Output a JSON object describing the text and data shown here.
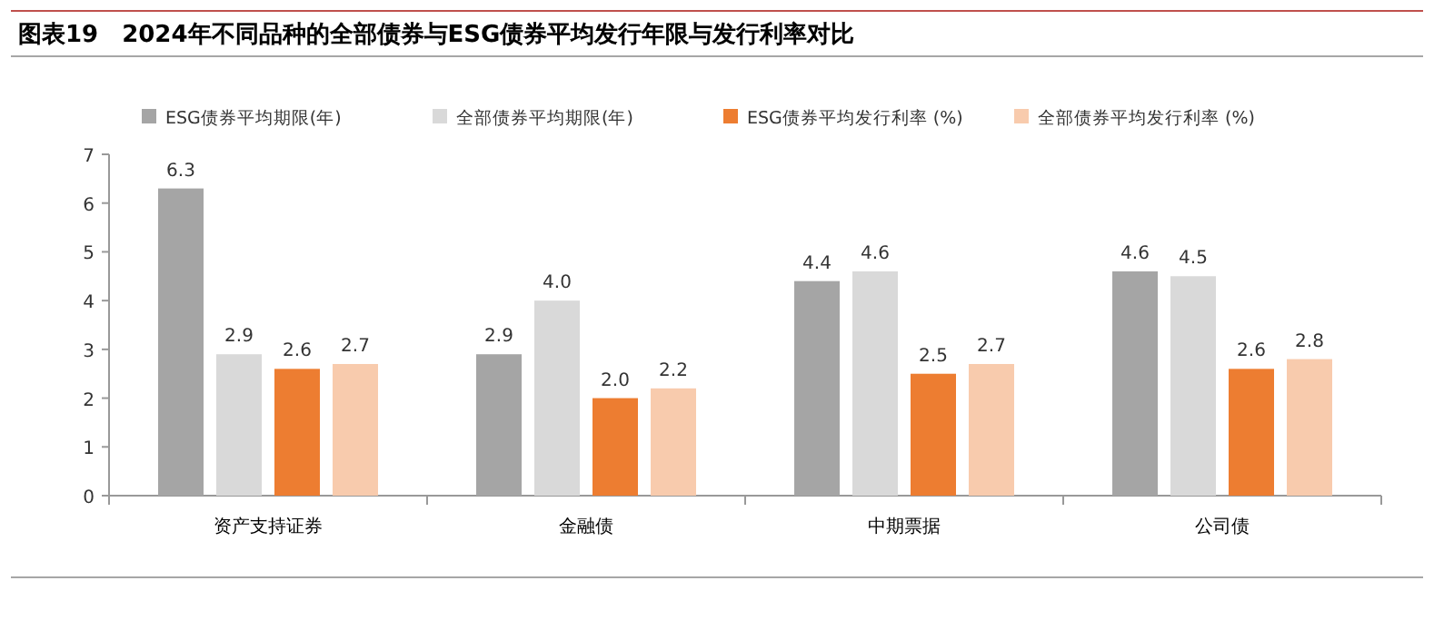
{
  "chart_data": {
    "type": "bar",
    "title": "图表19　2024年不同品种的全部债券与ESG债券平均发行年限与发行利率对比",
    "categories": [
      "资产支持证券",
      "金融债",
      "中期票据",
      "公司债"
    ],
    "series": [
      {
        "name": "ESG债券平均期限(年)",
        "color": "#a5a5a5",
        "values": [
          6.3,
          2.9,
          4.4,
          4.6
        ],
        "value_labels": [
          "6.3",
          "2.9",
          "4.4",
          "4.6"
        ]
      },
      {
        "name": "全部债券平均期限(年)",
        "color": "#d9d9d9",
        "values": [
          2.9,
          4.0,
          4.6,
          4.5
        ],
        "value_labels": [
          "2.9",
          "4.0",
          "4.6",
          "4.5"
        ]
      },
      {
        "name": "ESG债券平均发行利率 (%)",
        "color": "#ed7d31",
        "values": [
          2.6,
          2.0,
          2.5,
          2.6
        ],
        "value_labels": [
          "2.6",
          "2.0",
          "2.5",
          "2.6"
        ]
      },
      {
        "name": "全部债券平均发行利率 (%)",
        "color": "#f8cbad",
        "values": [
          2.7,
          2.2,
          2.7,
          2.8
        ],
        "value_labels": [
          "2.7",
          "2.2",
          "2.7",
          "2.8"
        ]
      }
    ],
    "ylim": [
      0,
      7
    ],
    "yticks": [
      0,
      1,
      2,
      3,
      4,
      5,
      6,
      7
    ],
    "legend": "top",
    "grid": false
  }
}
